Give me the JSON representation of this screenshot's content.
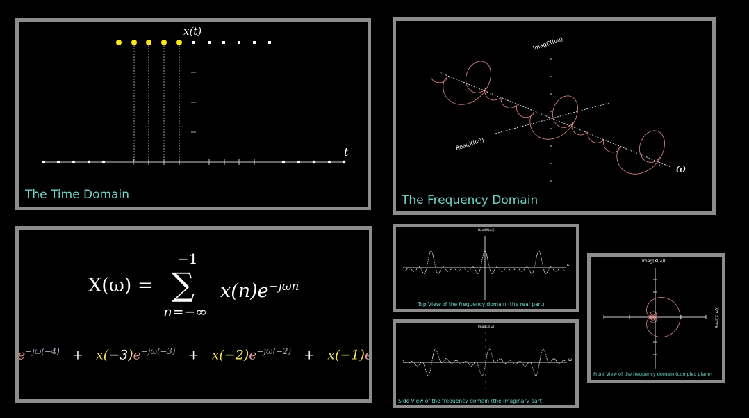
{
  "time_domain": {
    "caption": "The Time Domain",
    "y_label": "x(t)",
    "x_label": "t",
    "highlight_color": "#f5e71b"
  },
  "frequency_domain": {
    "caption": "The Frequency Domain",
    "imag_label": "Imag(X(ω))",
    "real_label": "Real(X(ω))",
    "omega_label": "ω",
    "curve_color": "#e08a8a"
  },
  "formula": {
    "lhs": "X(ω) =",
    "sum_symbol": "∑",
    "upper_limit": "−1",
    "lower_limit": "n=−∞",
    "term": "x(n)e",
    "term_exponent": "−jωn",
    "expansion": [
      {
        "prefix": "e",
        "exp": "−jω(−4)"
      },
      {
        "plus": "+",
        "x": "x(",
        "n": "−3",
        "close": ")",
        "e": "e",
        "exp": "−jω(−3)"
      },
      {
        "plus": "+",
        "x": "x(",
        "n": "−2",
        "close": ")",
        "e": "e",
        "exp": "−jω(−2)"
      },
      {
        "plus": "+",
        "x": "x(",
        "n": "−1",
        "close": ")",
        "e": "e"
      }
    ]
  },
  "top_view": {
    "caption": "Top View of the frequency domain (the real part)",
    "axis_label": "Real(X(ω))",
    "omega_label": "ω"
  },
  "side_view": {
    "caption": "Side View of the frequency domain (the imaginary part)",
    "axis_label": "Imag(X(ω))",
    "omega_label": "ω"
  },
  "front_view": {
    "caption": "Front View of the frequency domain (complex plane)",
    "imag_label": "Imag(X(ω))",
    "real_label": "Real(X(ω))"
  }
}
